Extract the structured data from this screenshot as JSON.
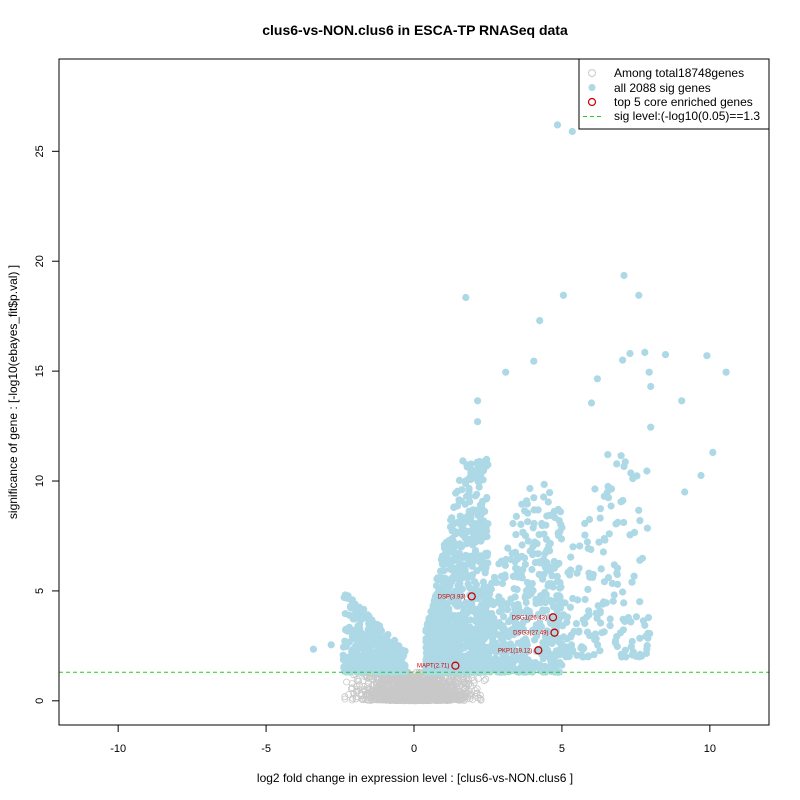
{
  "chart_data": {
    "type": "scatter",
    "title": "clus6-vs-NON.clus6 in ESCA-TP RNASeq data",
    "xlabel": "log2 fold change in expression level : [clus6-vs-NON.clus6 ]",
    "ylabel": "significance of gene : [-log10(ebayes_fit$p.val) ]",
    "xlim": [
      -12,
      12
    ],
    "ylim": [
      -1.1,
      29.2
    ],
    "x_ticks": [
      -10,
      -5,
      0,
      5,
      10
    ],
    "y_ticks": [
      0,
      5,
      10,
      15,
      20,
      25
    ],
    "sig_threshold": 1.3,
    "colors": {
      "background_genes": "#c8c8c8",
      "sig_genes": "#add8e6",
      "core_genes": "#cc0000",
      "threshold_line": "#22cc22"
    },
    "legend": {
      "position": "top-right",
      "entries": [
        {
          "label": "Among total18748genes",
          "symbol": "open-circle-grey"
        },
        {
          "label": "all 2088 sig genes",
          "symbol": "filled-circle-lightblue"
        },
        {
          "label": "top 5 core enriched genes",
          "symbol": "open-circle-red"
        },
        {
          "label": "sig level:(-log10(0.05)==1.3",
          "symbol": "dashed-line-green"
        }
      ]
    },
    "core_genes": [
      {
        "label": "DSP(3.93)",
        "x": 1.95,
        "y": 4.75
      },
      {
        "label": "DSG1(26.43)",
        "x": 4.7,
        "y": 3.8
      },
      {
        "label": "DSG3(27.49)",
        "x": 4.75,
        "y": 3.1
      },
      {
        "label": "PKP1(19.12)",
        "x": 4.2,
        "y": 2.3
      },
      {
        "label": "MAPT(2.71)",
        "x": 1.4,
        "y": 1.6
      }
    ],
    "highlight_sig_genes": [
      {
        "x": 4.85,
        "y": 26.2
      },
      {
        "x": 5.35,
        "y": 25.9
      },
      {
        "x": 7.1,
        "y": 19.35
      },
      {
        "x": 7.6,
        "y": 18.45
      },
      {
        "x": 1.75,
        "y": 18.35
      },
      {
        "x": 5.05,
        "y": 18.45
      },
      {
        "x": 4.25,
        "y": 17.3
      },
      {
        "x": 7.3,
        "y": 15.8
      },
      {
        "x": 7.8,
        "y": 15.85
      },
      {
        "x": 8.5,
        "y": 15.75
      },
      {
        "x": 9.9,
        "y": 15.7
      },
      {
        "x": 10.55,
        "y": 14.95
      },
      {
        "x": 7.05,
        "y": 15.5
      },
      {
        "x": 4.05,
        "y": 15.45
      },
      {
        "x": 3.1,
        "y": 14.95
      },
      {
        "x": 6.2,
        "y": 14.65
      },
      {
        "x": 7.95,
        "y": 14.95
      },
      {
        "x": 8.0,
        "y": 14.3
      },
      {
        "x": 6.0,
        "y": 13.55
      },
      {
        "x": 9.05,
        "y": 13.65
      },
      {
        "x": 2.15,
        "y": 13.65
      },
      {
        "x": 2.15,
        "y": 12.7
      },
      {
        "x": 8.0,
        "y": 12.45
      },
      {
        "x": 10.1,
        "y": 11.3
      },
      {
        "x": 9.7,
        "y": 10.25
      },
      {
        "x": 9.15,
        "y": 9.5
      },
      {
        "x": 7.0,
        "y": 11.15
      },
      {
        "x": 6.55,
        "y": 11.2
      },
      {
        "x": 6.6,
        "y": 7.6
      },
      {
        "x": 7.3,
        "y": 7.55
      },
      {
        "x": 7.05,
        "y": 4.95
      },
      {
        "x": 6.35,
        "y": 3.1
      },
      {
        "x": -3.4,
        "y": 2.35
      },
      {
        "x": -2.8,
        "y": 2.55
      }
    ],
    "sig_clusters": [
      {
        "x_min": 0.4,
        "x_max": 2.5,
        "y_min": 1.3,
        "y_max": 11.0,
        "n": 950
      },
      {
        "x_min": 2.0,
        "x_max": 5.0,
        "y_min": 1.3,
        "y_max": 10.0,
        "n": 520
      },
      {
        "x_min": 4.5,
        "x_max": 8.0,
        "y_min": 2.0,
        "y_max": 11.5,
        "n": 190
      },
      {
        "x_min": -2.4,
        "x_max": -0.3,
        "y_min": 1.3,
        "y_max": 5.2,
        "n": 380
      }
    ]
  }
}
